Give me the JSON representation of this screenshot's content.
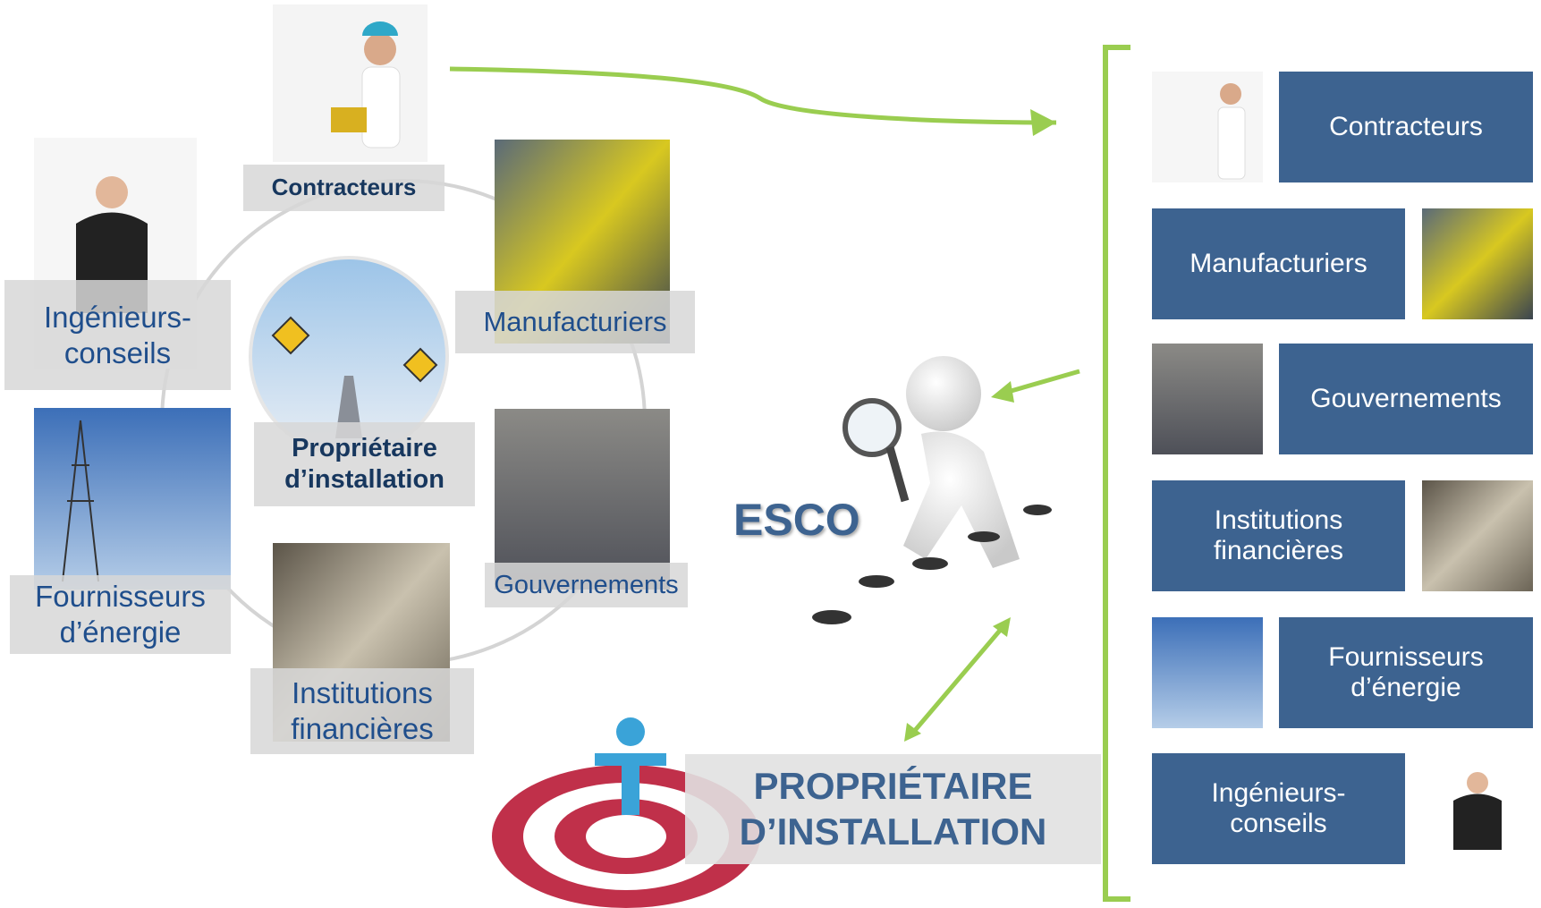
{
  "cycle": {
    "items": [
      {
        "lines": [
          "Contracteurs"
        ]
      },
      {
        "lines": [
          "Manufacturiers"
        ]
      },
      {
        "lines": [
          "Gouvernements"
        ]
      },
      {
        "lines": [
          "Institutions",
          "financières"
        ]
      },
      {
        "lines": [
          "Fournisseurs",
          "d’énergie"
        ]
      },
      {
        "lines": [
          "Ingénieurs-",
          "conseils"
        ]
      }
    ],
    "center": {
      "lines": [
        "Propriétaire",
        "d’installation"
      ]
    }
  },
  "esco": "ESCO",
  "owner": {
    "lines": [
      "PROPRIÉTAIRE",
      "D’INSTALLATION"
    ]
  },
  "list": [
    {
      "lines": [
        "Contracteurs"
      ]
    },
    {
      "lines": [
        "Manufacturiers"
      ]
    },
    {
      "lines": [
        "Gouvernements"
      ]
    },
    {
      "lines": [
        "Institutions",
        "financières"
      ]
    },
    {
      "lines": [
        "Fournisseurs",
        "d’énergie"
      ]
    },
    {
      "lines": [
        "Ingénieurs-",
        "conseils"
      ]
    }
  ]
}
